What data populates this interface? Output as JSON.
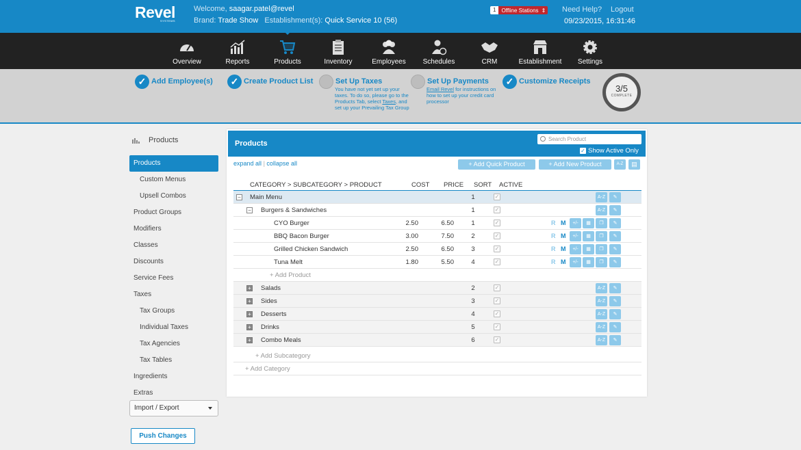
{
  "brand": {
    "logo": "Revel",
    "logo_sub": "SYSTEMS"
  },
  "header": {
    "welcome_prefix": "Welcome,",
    "username": "saagar.patel@revel",
    "brand_prefix": "Brand:",
    "brand_name": "Trade Show",
    "est_prefix": "Establishment(s):",
    "est_name": "Quick Service 10 (56)",
    "offline_count": "1",
    "offline_label": "Offline Stations",
    "need_help": "Need Help?",
    "logout": "Logout",
    "datetime": "09/23/2015, 16:31:46"
  },
  "nav": [
    "Overview",
    "Reports",
    "Products",
    "Inventory",
    "Employees",
    "Schedules",
    "CRM",
    "Establishment",
    "Settings"
  ],
  "nav_active": "Products",
  "steps": [
    {
      "title": "Add Employee(s)",
      "done": true
    },
    {
      "title": "Create Product List",
      "done": true
    },
    {
      "title": "Set Up Taxes",
      "done": false,
      "desc_1": "You have not yet set up your taxes. To do so, please go to the Products Tab, select",
      "desc_link": "Taxes",
      "desc_2": ", and set up your Prevailing Tax Group"
    },
    {
      "title": "Set Up Payments",
      "done": false,
      "desc_link": "Email Revel",
      "desc_2": " for instructions on how to set up your credit card processor"
    },
    {
      "title": "Customize Receipts",
      "done": true
    }
  ],
  "progress": {
    "value": "3/5",
    "label": "COMPLETE",
    "fraction": 0.6
  },
  "sidebar": {
    "header": "Products",
    "items": [
      {
        "label": "Products",
        "active": true,
        "sub": false
      },
      {
        "label": "Custom Menus",
        "sub": true
      },
      {
        "label": "Upsell Combos",
        "sub": true
      },
      {
        "label": "Product Groups",
        "sub": false
      },
      {
        "label": "Modifiers",
        "sub": false
      },
      {
        "label": "Classes",
        "sub": false
      },
      {
        "label": "Discounts",
        "sub": false
      },
      {
        "label": "Service Fees",
        "sub": false
      },
      {
        "label": "Taxes",
        "sub": false
      },
      {
        "label": "Tax Groups",
        "sub": true
      },
      {
        "label": "Individual Taxes",
        "sub": true
      },
      {
        "label": "Tax Agencies",
        "sub": true
      },
      {
        "label": "Tax Tables",
        "sub": true
      },
      {
        "label": "Ingredients",
        "sub": false
      },
      {
        "label": "Extras",
        "sub": false
      }
    ],
    "import_export": "Import / Export",
    "push_changes": "Push Changes"
  },
  "panel": {
    "title": "Products",
    "search_placeholder": "Search Product",
    "show_active": "Show Active Only",
    "expand_all": "expand all",
    "collapse_all": "collapse all",
    "add_quick": "+ Add Quick Product",
    "add_new": "+ Add New Product",
    "az": "A-Z",
    "columns": {
      "path": "CATEGORY > SUBCATEGORY > PRODUCT",
      "cost": "COST",
      "price": "PRICE",
      "sort": "SORT",
      "active": "ACTIVE"
    },
    "main_menu": {
      "name": "Main Menu",
      "sort": "1"
    },
    "subcategory": {
      "name": "Burgers & Sandwiches",
      "sort": "1"
    },
    "products": [
      {
        "name": "CYO Burger",
        "cost": "2.50",
        "price": "6.50",
        "sort": "1"
      },
      {
        "name": "BBQ Bacon Burger",
        "cost": "3.00",
        "price": "7.50",
        "sort": "2"
      },
      {
        "name": "Grilled Chicken Sandwich",
        "cost": "2.50",
        "price": "6.50",
        "sort": "3"
      },
      {
        "name": "Tuna Melt",
        "cost": "1.80",
        "price": "5.50",
        "sort": "4"
      }
    ],
    "row_r": "R",
    "row_m": "M",
    "add_product": "+ Add Product",
    "categories": [
      {
        "name": "Salads",
        "sort": "2"
      },
      {
        "name": "Sides",
        "sort": "3"
      },
      {
        "name": "Desserts",
        "sort": "4"
      },
      {
        "name": "Drinks",
        "sort": "5"
      },
      {
        "name": "Combo Meals",
        "sort": "6"
      }
    ],
    "add_subcategory": "+ Add Subcategory",
    "add_category": "+ Add Category"
  }
}
